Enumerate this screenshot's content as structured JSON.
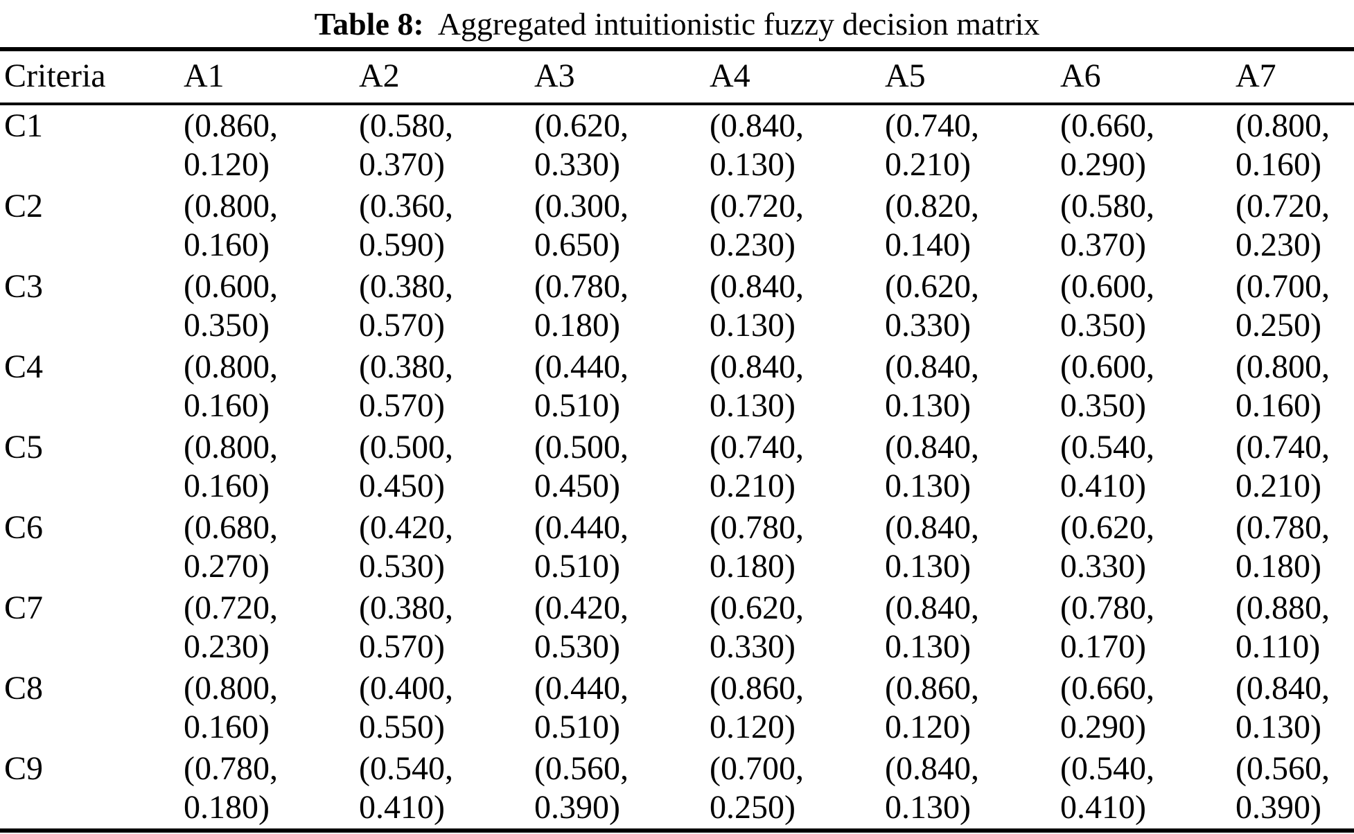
{
  "caption": {
    "label": "Table 8:",
    "text": "Aggregated intuitionistic fuzzy decision matrix"
  },
  "colors": {
    "text": "#000000",
    "background": "#ffffff",
    "rule": "#000000"
  },
  "table": {
    "columns": [
      "Criteria",
      "A1",
      "A2",
      "A3",
      "A4",
      "A5",
      "A6",
      "A7"
    ],
    "rows": [
      {
        "criterion": "C1",
        "cells": [
          [
            "0.860",
            "0.120"
          ],
          [
            "0.580",
            "0.370"
          ],
          [
            "0.620",
            "0.330"
          ],
          [
            "0.840",
            "0.130"
          ],
          [
            "0.740",
            "0.210"
          ],
          [
            "0.660",
            "0.290"
          ],
          [
            "0.800",
            "0.160"
          ]
        ]
      },
      {
        "criterion": "C2",
        "cells": [
          [
            "0.800",
            "0.160"
          ],
          [
            "0.360",
            "0.590"
          ],
          [
            "0.300",
            "0.650"
          ],
          [
            "0.720",
            "0.230"
          ],
          [
            "0.820",
            "0.140"
          ],
          [
            "0.580",
            "0.370"
          ],
          [
            "0.720",
            "0.230"
          ]
        ]
      },
      {
        "criterion": "C3",
        "cells": [
          [
            "0.600",
            "0.350"
          ],
          [
            "0.380",
            "0.570"
          ],
          [
            "0.780",
            "0.180"
          ],
          [
            "0.840",
            "0.130"
          ],
          [
            "0.620",
            "0.330"
          ],
          [
            "0.600",
            "0.350"
          ],
          [
            "0.700",
            "0.250"
          ]
        ]
      },
      {
        "criterion": "C4",
        "cells": [
          [
            "0.800",
            "0.160"
          ],
          [
            "0.380",
            "0.570"
          ],
          [
            "0.440",
            "0.510"
          ],
          [
            "0.840",
            "0.130"
          ],
          [
            "0.840",
            "0.130"
          ],
          [
            "0.600",
            "0.350"
          ],
          [
            "0.800",
            "0.160"
          ]
        ]
      },
      {
        "criterion": "C5",
        "cells": [
          [
            "0.800",
            "0.160"
          ],
          [
            "0.500",
            "0.450"
          ],
          [
            "0.500",
            "0.450"
          ],
          [
            "0.740",
            "0.210"
          ],
          [
            "0.840",
            "0.130"
          ],
          [
            "0.540",
            "0.410"
          ],
          [
            "0.740",
            "0.210"
          ]
        ]
      },
      {
        "criterion": "C6",
        "cells": [
          [
            "0.680",
            "0.270"
          ],
          [
            "0.420",
            "0.530"
          ],
          [
            "0.440",
            "0.510"
          ],
          [
            "0.780",
            "0.180"
          ],
          [
            "0.840",
            "0.130"
          ],
          [
            "0.620",
            "0.330"
          ],
          [
            "0.780",
            "0.180"
          ]
        ]
      },
      {
        "criterion": "C7",
        "cells": [
          [
            "0.720",
            "0.230"
          ],
          [
            "0.380",
            "0.570"
          ],
          [
            "0.420",
            "0.530"
          ],
          [
            "0.620",
            "0.330"
          ],
          [
            "0.840",
            "0.130"
          ],
          [
            "0.780",
            "0.170"
          ],
          [
            "0.880",
            "0.110"
          ]
        ]
      },
      {
        "criterion": "C8",
        "cells": [
          [
            "0.800",
            "0.160"
          ],
          [
            "0.400",
            "0.550"
          ],
          [
            "0.440",
            "0.510"
          ],
          [
            "0.860",
            "0.120"
          ],
          [
            "0.860",
            "0.120"
          ],
          [
            "0.660",
            "0.290"
          ],
          [
            "0.840",
            "0.130"
          ]
        ]
      },
      {
        "criterion": "C9",
        "cells": [
          [
            "0.780",
            "0.180"
          ],
          [
            "0.540",
            "0.410"
          ],
          [
            "0.560",
            "0.390"
          ],
          [
            "0.700",
            "0.250"
          ],
          [
            "0.840",
            "0.130"
          ],
          [
            "0.540",
            "0.410"
          ],
          [
            "0.560",
            "0.390"
          ]
        ]
      }
    ],
    "cell_format": {
      "open": "(",
      "separator": ",",
      "close": ")"
    }
  }
}
